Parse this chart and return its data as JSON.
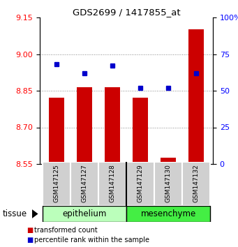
{
  "title": "GDS2699 / 1417855_at",
  "samples": [
    "GSM147125",
    "GSM147127",
    "GSM147128",
    "GSM147129",
    "GSM147130",
    "GSM147132"
  ],
  "red_values": [
    8.82,
    8.865,
    8.865,
    8.82,
    8.575,
    9.1
  ],
  "blue_percentiles": [
    68,
    62,
    67,
    52,
    52,
    62
  ],
  "ylim_red": [
    8.55,
    9.15
  ],
  "ylim_blue": [
    0,
    100
  ],
  "yticks_red": [
    8.55,
    8.7,
    8.85,
    9.0,
    9.15
  ],
  "yticks_blue": [
    0,
    25,
    50,
    75,
    100
  ],
  "groups": [
    {
      "label": "epithelium",
      "color": "#bbffbb",
      "start": 0,
      "end": 2
    },
    {
      "label": "mesenchyme",
      "color": "#44ee44",
      "start": 3,
      "end": 5
    }
  ],
  "tissue_label": "tissue",
  "red_color": "#cc0000",
  "blue_color": "#0000cc",
  "bar_width": 0.55,
  "legend_red": "transformed count",
  "legend_blue": "percentile rank within the sample",
  "grid_color": "#888888",
  "bar_baseline": 8.55
}
